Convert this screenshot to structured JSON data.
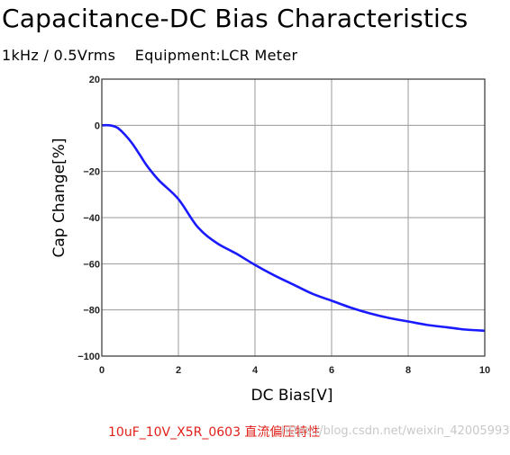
{
  "title": "Capacitance-DC Bias Characteristics",
  "subtitle": "1kHz / 0.5Vrms    Equipment:LCR Meter",
  "caption": "10uF_10V_X5R_0603 直流偏压特性",
  "watermark": "https://blog.csdn.net/weixin_42005993",
  "chart_data": {
    "type": "line",
    "xlabel": "DC Bias[V]",
    "ylabel": "Cap Change[%]",
    "xlim": [
      0,
      10
    ],
    "ylim": [
      -100,
      20
    ],
    "xticks": [
      0,
      2,
      4,
      6,
      8,
      10
    ],
    "yticks": [
      20,
      0,
      -20,
      -40,
      -60,
      -80,
      -100
    ],
    "grid": true,
    "line_color": "#1a1aff",
    "series": [
      {
        "x": [
          0,
          0.2,
          0.4,
          0.6,
          0.8,
          1.0,
          1.2,
          1.5,
          2.0,
          2.5,
          3.0,
          3.5,
          4.0,
          4.5,
          5.0,
          5.5,
          6.0,
          6.5,
          7.0,
          7.5,
          8.0,
          8.5,
          9.0,
          9.5,
          10.0
        ],
        "y": [
          0,
          0,
          -1,
          -4,
          -8,
          -13,
          -18,
          -24,
          -32,
          -44,
          -51,
          -55.5,
          -60.5,
          -65,
          -69,
          -73,
          -76,
          -79,
          -81.5,
          -83.5,
          -85,
          -86.5,
          -87.5,
          -88.5,
          -89
        ]
      }
    ]
  }
}
